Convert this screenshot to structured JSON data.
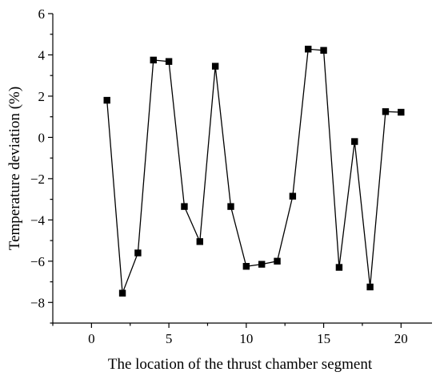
{
  "chart_data": {
    "type": "line",
    "title": "",
    "xlabel": "The location of the thrust chamber segment",
    "ylabel": "Temperature deviation (%)",
    "xlim": [
      -2.5,
      22
    ],
    "ylim": [
      -9,
      6
    ],
    "xticks": [
      0,
      5,
      10,
      15,
      20
    ],
    "yticks": [
      -8,
      -6,
      -4,
      -2,
      0,
      2,
      4,
      6
    ],
    "grid": false,
    "legend": "none",
    "marker": "square",
    "color": "#000000",
    "series": [
      {
        "x": [
          1,
          2,
          3,
          4,
          5,
          6,
          7,
          8,
          9,
          10,
          11,
          12,
          13,
          14,
          15,
          16,
          17,
          18,
          19,
          20
        ],
        "y": [
          1.8,
          -7.55,
          -5.6,
          3.75,
          3.68,
          -3.35,
          -5.05,
          3.45,
          -3.35,
          -6.25,
          -6.15,
          -6.0,
          -2.85,
          4.28,
          4.22,
          -6.3,
          -0.2,
          -7.25,
          1.25,
          1.22
        ]
      }
    ]
  }
}
